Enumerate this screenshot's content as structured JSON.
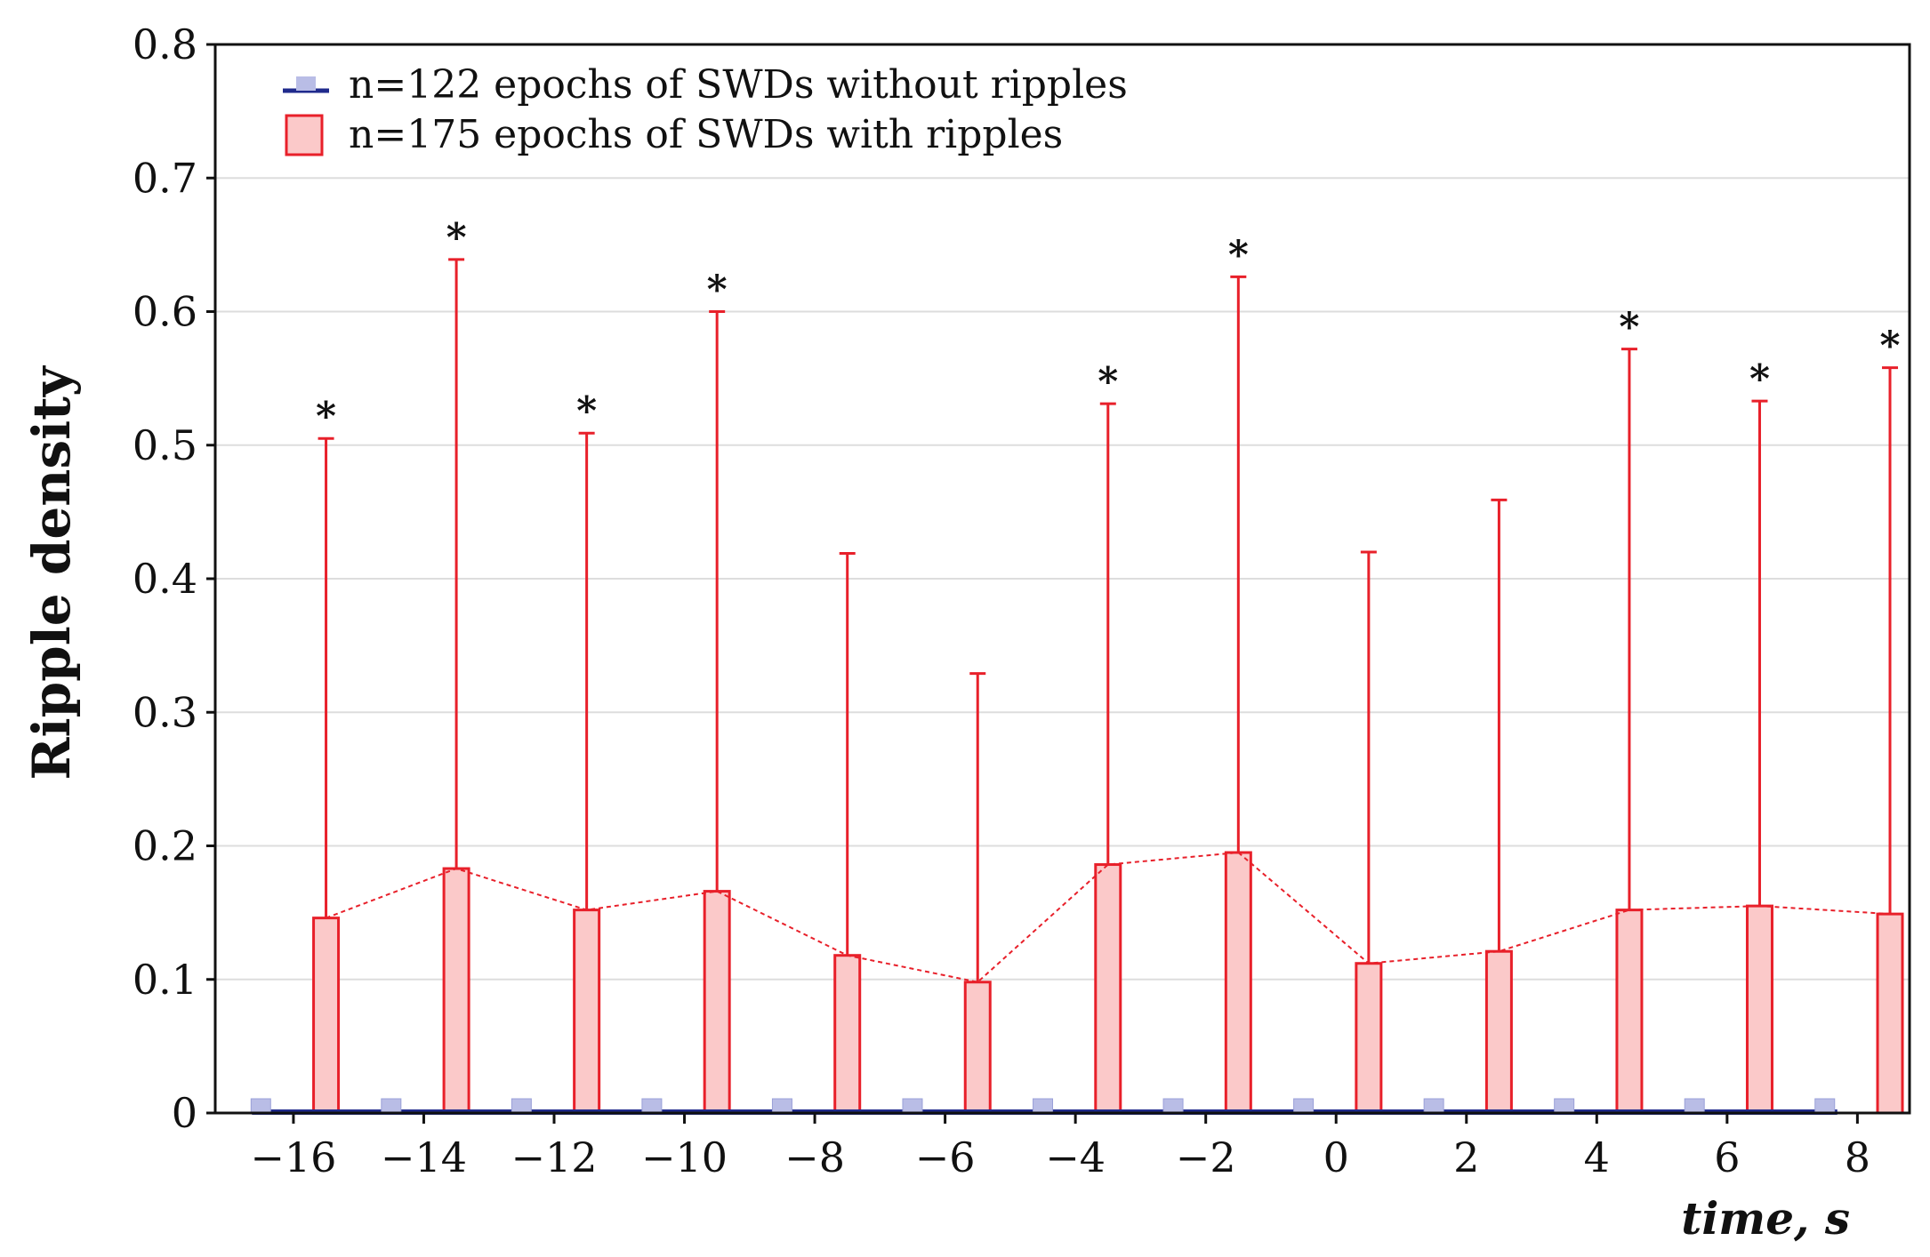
{
  "colors": {
    "with_ripples_stroke": "#e8202a",
    "with_ripples_fill": "#fbc9c9",
    "without_ripples_line": "#1f2a8c",
    "without_ripples_marker": "#b9bde6",
    "grid": "#dddddd",
    "axis": "#111111"
  },
  "chart_data": {
    "type": "bar",
    "xlabel": "time, s",
    "ylabel": "Ripple density",
    "xlim": [
      -17.2,
      8.8
    ],
    "ylim": [
      0,
      0.8
    ],
    "xticks": [
      -16,
      -14,
      -12,
      -10,
      -8,
      -6,
      -4,
      -2,
      0,
      2,
      4,
      6,
      8
    ],
    "xtick_labels": [
      "−16",
      "−14",
      "−12",
      "−10",
      "−8",
      "−6",
      "−4",
      "−2",
      "0",
      "2",
      "4",
      "6",
      "8"
    ],
    "yticks": [
      0,
      0.1,
      0.2,
      0.3,
      0.4,
      0.5,
      0.6,
      0.7,
      0.8
    ],
    "ytick_labels": [
      "0",
      "0.1",
      "0.2",
      "0.3",
      "0.4",
      "0.5",
      "0.6",
      "0.7",
      "0.8"
    ],
    "grid": true,
    "legend_position": "top-left",
    "series": [
      {
        "name": "n=122 epochs of SWDs without ripples",
        "x": [
          -16.5,
          -14.5,
          -12.5,
          -10.5,
          -8.5,
          -6.5,
          -4.5,
          -2.5,
          -0.5,
          1.5,
          3.5,
          5.5,
          7.5
        ],
        "values": [
          0,
          0,
          0,
          0,
          0,
          0,
          0,
          0,
          0,
          0,
          0,
          0,
          0
        ]
      },
      {
        "name": "n=175 epochs of SWDs with ripples",
        "x": [
          -15.5,
          -13.5,
          -11.5,
          -9.5,
          -7.5,
          -5.5,
          -3.5,
          -1.5,
          0.5,
          2.5,
          4.5,
          6.5,
          8.5
        ],
        "values": [
          0.146,
          0.183,
          0.152,
          0.166,
          0.118,
          0.098,
          0.186,
          0.195,
          0.112,
          0.121,
          0.152,
          0.155,
          0.149
        ],
        "error_upper": [
          0.505,
          0.639,
          0.509,
          0.6,
          0.419,
          0.329,
          0.531,
          0.626,
          0.42,
          0.459,
          0.572,
          0.533,
          0.558
        ],
        "significance": [
          "*",
          "*",
          "*",
          "*",
          "",
          "",
          "*",
          "*",
          "",
          "",
          "*",
          "*",
          "*"
        ]
      }
    ]
  }
}
